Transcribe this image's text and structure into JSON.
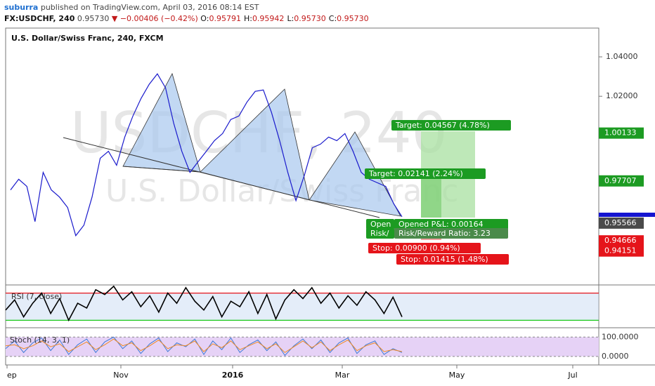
{
  "header": {
    "author": "suburra",
    "published": " published on TradingView.com, April 03, 2016 08:14 EST",
    "symbol": "FX:USDCHF, 240",
    "last": "0.95730",
    "change": "▼ −0.00406 (−0.42%)",
    "ohlc": [
      {
        "key": "O:",
        "value": "0.95791"
      },
      {
        "key": "H:",
        "value": "0.95942"
      },
      {
        "key": "L:",
        "value": "0.95730"
      },
      {
        "key": "C:",
        "value": "0.95730"
      }
    ]
  },
  "chart_data": [
    {
      "type": "line",
      "title": "U.S. Dollar/Swiss Franc, 240, FXCM",
      "watermark": [
        "USDCHF, 240",
        "U.S. Dollar/Swiss Franc"
      ],
      "color": "#1a1acc",
      "values": [
        0.9725,
        0.9779,
        0.9743,
        0.9564,
        0.9814,
        0.9725,
        0.9689,
        0.9636,
        0.9493,
        0.9546,
        0.9689,
        0.9886,
        0.9921,
        0.985,
        0.9993,
        1.01,
        1.0189,
        1.0261,
        1.0314,
        1.0243,
        1.0064,
        0.9921,
        0.9814,
        0.9868,
        0.9921,
        0.9975,
        1.0011,
        1.0082,
        1.01,
        1.0171,
        1.0225,
        1.0232,
        1.0118,
        0.9975,
        0.9814,
        0.9671,
        0.9796,
        0.9939,
        0.9957,
        0.9993,
        0.9975,
        1.0011,
        0.9921,
        0.9814,
        0.9779,
        0.9761,
        0.9743,
        0.9654,
        0.9589
      ],
      "ylim": [
        0.9243,
        1.0546
      ],
      "yticks": [
        {
          "value": 1.02,
          "label": "1.02000"
        },
        {
          "value": 1.04,
          "label": "1.04000"
        }
      ],
      "x_labels": [
        "ep",
        "Nov",
        "2016",
        "Mar",
        "May",
        "Jul"
      ],
      "axis_markers": {
        "values": [
          1.00133,
          0.97707,
          0.95566,
          0.94666,
          0.94151
        ],
        "colors": [
          "#1c9b22",
          "#1c9b22",
          "#4a4a4a",
          "#e5141a",
          "#e5141a"
        ]
      },
      "annotations": [
        "Target: 0.04567 (4.78%)",
        "Target: 0.02141 (2.24%)",
        "Open",
        "Risk/",
        "Opened P&L: 0.00164",
        "Risk/Reward Ratio: 3.23",
        "Stop: 0.00900 (0.94%)",
        "Stop: 0.01415 (1.48%)"
      ]
    },
    {
      "type": "line",
      "title": "RSI (7, close)",
      "color": "#000000",
      "values": [
        45,
        60,
        35,
        55,
        70,
        40,
        62,
        30,
        55,
        48,
        75,
        68,
        80,
        60,
        72,
        50,
        66,
        42,
        70,
        55,
        78,
        58,
        45,
        65,
        35,
        58,
        50,
        72,
        40,
        68,
        32,
        60,
        75,
        62,
        78,
        55,
        70,
        48,
        66,
        52,
        72,
        60,
        40,
        64,
        35
      ],
      "ylim": [
        19,
        82
      ],
      "levels": [
        70,
        30
      ],
      "level_colors": [
        "#e5141a",
        "#19c819"
      ]
    },
    {
      "type": "line",
      "title": "Stoch (14, 3, 1)",
      "ylim": [
        -44,
        148
      ],
      "yticks": [
        {
          "value": 100,
          "label": "100.0000"
        },
        {
          "value": 0,
          "label": "0.0000"
        }
      ],
      "series": [
        {
          "color": "#3d7ad6",
          "values": [
            40,
            80,
            20,
            70,
            95,
            30,
            85,
            10,
            60,
            90,
            20,
            75,
            100,
            40,
            80,
            15,
            65,
            95,
            25,
            70,
            50,
            90,
            10,
            80,
            35,
            95,
            20,
            60,
            85,
            30,
            75,
            5,
            55,
            90,
            40,
            85,
            20,
            70,
            95,
            15,
            60,
            80,
            10,
            40,
            20
          ]
        },
        {
          "color": "#f08a24",
          "values": [
            55,
            60,
            40,
            55,
            80,
            50,
            65,
            25,
            50,
            75,
            35,
            60,
            90,
            55,
            70,
            30,
            55,
            85,
            40,
            60,
            55,
            80,
            25,
            65,
            45,
            80,
            35,
            55,
            75,
            40,
            65,
            20,
            50,
            80,
            45,
            75,
            30,
            60,
            85,
            30,
            55,
            70,
            25,
            35,
            25
          ]
        }
      ]
    }
  ]
}
